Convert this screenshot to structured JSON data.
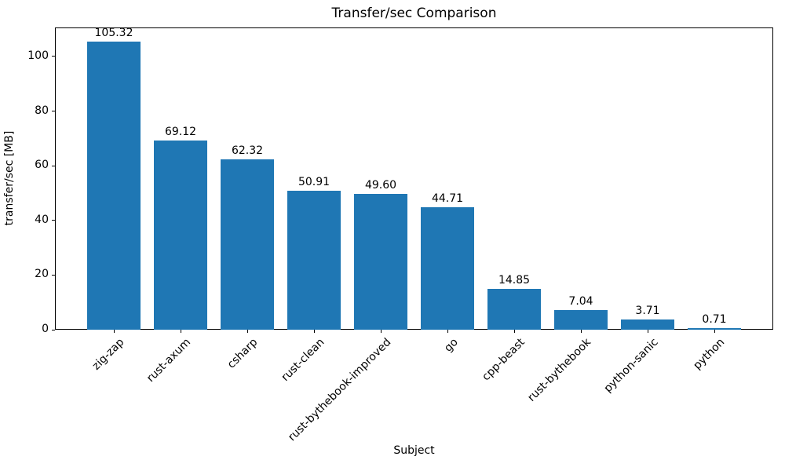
{
  "chart_data": {
    "type": "bar",
    "title": "Transfer/sec Comparison",
    "xlabel": "Subject",
    "ylabel": "transfer/sec [MB]",
    "categories": [
      "zig-zap",
      "rust-axum",
      "csharp",
      "rust-clean",
      "rust-bythebook-improved",
      "go",
      "cpp-beast",
      "rust-bythebook",
      "python-sanic",
      "python"
    ],
    "values": [
      105.32,
      69.12,
      62.32,
      50.91,
      49.6,
      44.71,
      14.85,
      7.04,
      3.71,
      0.71
    ],
    "value_labels": [
      "105.32",
      "69.12",
      "62.32",
      "50.91",
      "49.60",
      "44.71",
      "14.85",
      "7.04",
      "3.71",
      "0.71"
    ],
    "yticks": [
      0,
      20,
      40,
      60,
      80,
      100
    ],
    "ylim": [
      0,
      110.6
    ],
    "bar_color": "#1f77b4",
    "grid": false,
    "legend_position": "none"
  }
}
